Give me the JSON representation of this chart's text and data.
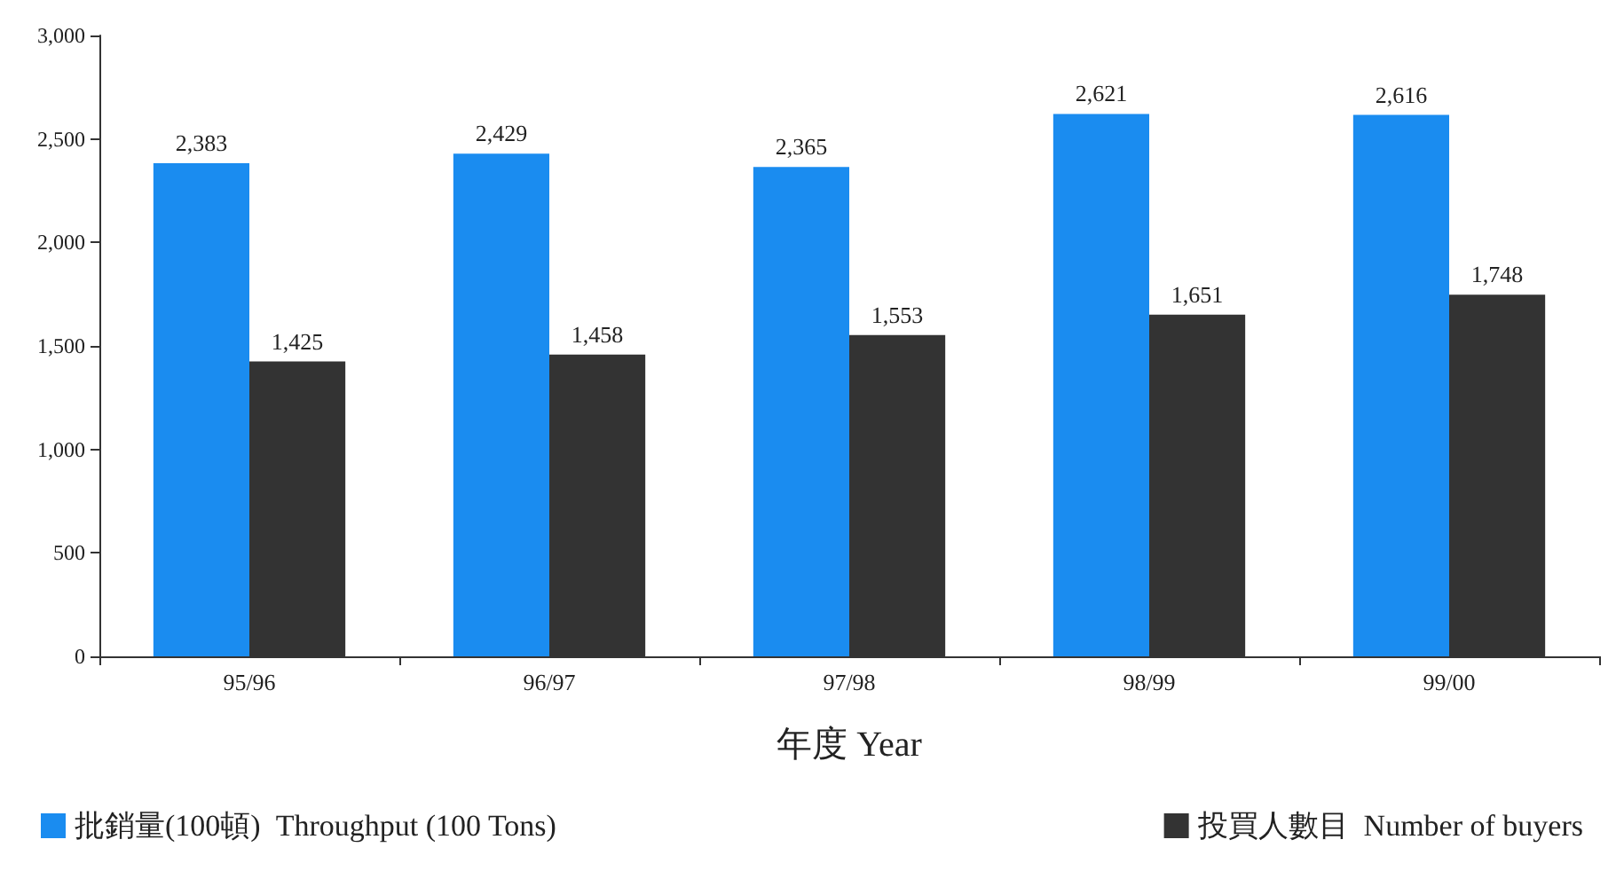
{
  "chart_data": {
    "type": "bar",
    "xlabel": "年度 Year",
    "categories": [
      "95/96",
      "96/97",
      "97/98",
      "98/99",
      "99/00"
    ],
    "series": [
      {
        "name": "批銷量(100頓)  Throughput (100 Tons)",
        "color": "#1a8cf0",
        "values": [
          2383,
          2429,
          2365,
          2621,
          2616
        ],
        "value_labels": [
          "2,383",
          "2,429",
          "2,365",
          "2,621",
          "2,616"
        ]
      },
      {
        "name": "投買人數目  Number of buyers",
        "color": "#333333",
        "values": [
          1425,
          1458,
          1553,
          1651,
          1748
        ],
        "value_labels": [
          "1,425",
          "1,458",
          "1,553",
          "1,651",
          "1,748"
        ]
      }
    ],
    "ylim": [
      0,
      3000
    ],
    "yticks": [
      {
        "value": 0,
        "label": "0"
      },
      {
        "value": 500,
        "label": "500"
      },
      {
        "value": 1000,
        "label": "1,000"
      },
      {
        "value": 1500,
        "label": "1,500"
      },
      {
        "value": 2000,
        "label": "2,000"
      },
      {
        "value": 2500,
        "label": "2,500"
      },
      {
        "value": 3000,
        "label": "3,000"
      }
    ],
    "grid": false,
    "legend": "bottom"
  }
}
